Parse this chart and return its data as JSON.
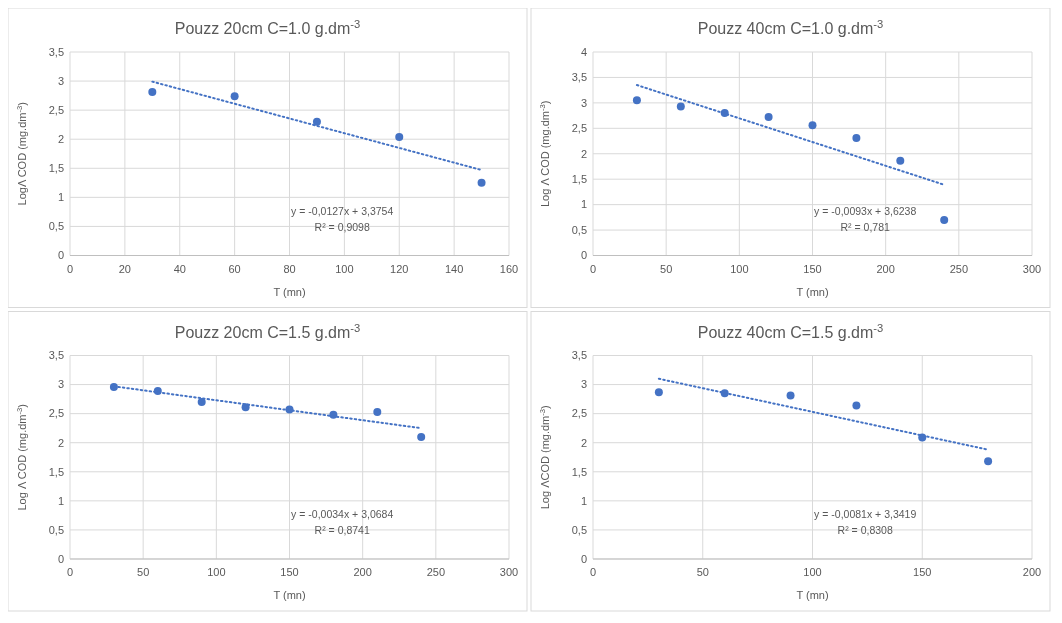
{
  "chart_data": [
    {
      "type": "scatter",
      "title": "Pouzz 20cm C=1.0 g.dm$^{-3}$",
      "xlabel": "T (mn)",
      "ylabel": "LogΛ  COD (mg.dm$^{-3}$)",
      "xlim": [
        0,
        160
      ],
      "xticks": [
        0,
        20,
        40,
        60,
        80,
        100,
        120,
        140,
        160
      ],
      "ylim": [
        0,
        3.5
      ],
      "yticks": [
        0,
        {
          "value": 0.5,
          "label": "0,5"
        },
        1,
        {
          "value": 1.5,
          "label": "1,5"
        },
        2,
        {
          "value": 2.5,
          "label": "2,5"
        },
        3,
        {
          "value": 3.5,
          "label": "3,5"
        }
      ],
      "grid": true,
      "annotations": [
        "y = -0,0127x + 3,3754",
        "R² = 0,9098"
      ],
      "series": [
        {
          "marker": "circle",
          "color": "#4472c4",
          "x": [
            30,
            60,
            90,
            120,
            150
          ],
          "values": [
            2.81,
            2.74,
            2.3,
            2.04,
            1.25
          ]
        },
        {
          "type": "line",
          "marker": "none",
          "line_style": "dotted",
          "color": "#4472c4",
          "x": [
            30,
            150
          ],
          "values": [
            2.99,
            1.47
          ]
        }
      ]
    },
    {
      "type": "scatter",
      "title": "Pouzz 40cm C=1.0 g.dm$^{-3}$",
      "xlabel": "T (mn)",
      "ylabel": "Log Λ COD (mg.dm$^{-3}$)",
      "xlim": [
        0,
        300
      ],
      "xticks": [
        0,
        50,
        100,
        150,
        200,
        250,
        300
      ],
      "ylim": [
        0,
        4
      ],
      "yticks": [
        0,
        {
          "value": 0.5,
          "label": "0,5"
        },
        1,
        {
          "value": 1.5,
          "label": "1,5"
        },
        2,
        {
          "value": 2.5,
          "label": "2,5"
        },
        3,
        {
          "value": 3.5,
          "label": "3,5"
        },
        4
      ],
      "grid": true,
      "annotations": [
        "y = -0,0093x + 3,6238",
        "R² = 0,781"
      ],
      "series": [
        {
          "marker": "circle",
          "color": "#4472c4",
          "x": [
            30,
            60,
            90,
            120,
            150,
            180,
            210,
            240
          ],
          "values": [
            3.05,
            2.93,
            2.8,
            2.72,
            2.56,
            2.31,
            1.86,
            0.7
          ]
        },
        {
          "type": "line",
          "marker": "none",
          "line_style": "dotted",
          "color": "#4472c4",
          "x": [
            30,
            240
          ],
          "values": [
            3.35,
            1.39
          ]
        }
      ]
    },
    {
      "type": "scatter",
      "title": "Pouzz 20cm C=1.5 g.dm$^{-3}$",
      "xlabel": "T (mn)",
      "ylabel": "Log Λ COD (mg.dm$^{-3}$)",
      "xlim": [
        0,
        300
      ],
      "xticks": [
        0,
        50,
        100,
        150,
        200,
        250,
        300
      ],
      "ylim": [
        0,
        3.5
      ],
      "yticks": [
        0,
        {
          "value": 0.5,
          "label": "0,5"
        },
        1,
        {
          "value": 1.5,
          "label": "1,5"
        },
        2,
        {
          "value": 2.5,
          "label": "2,5"
        },
        3,
        {
          "value": 3.5,
          "label": "3,5"
        }
      ],
      "grid": true,
      "annotations": [
        "y = -0,0034x + 3,0684",
        "R² = 0,8741"
      ],
      "series": [
        {
          "marker": "circle",
          "color": "#4472c4",
          "x": [
            30,
            60,
            90,
            120,
            150,
            180,
            210,
            240
          ],
          "values": [
            2.96,
            2.89,
            2.7,
            2.61,
            2.57,
            2.48,
            2.53,
            2.1
          ]
        },
        {
          "type": "line",
          "marker": "none",
          "line_style": "dotted",
          "color": "#4472c4",
          "x": [
            30,
            240
          ],
          "values": [
            2.97,
            2.25
          ]
        }
      ]
    },
    {
      "type": "scatter",
      "title": "Pouzz 40cm C=1.5 g.dm$^{-3}$",
      "xlabel": "T (mn)",
      "ylabel": "Log ΛCOD (mg.dm$^{-3}$)",
      "xlim": [
        0,
        200
      ],
      "xticks": [
        0,
        50,
        100,
        150,
        200
      ],
      "ylim": [
        0,
        3.5
      ],
      "yticks": [
        0,
        {
          "value": 0.5,
          "label": "0,5"
        },
        1,
        {
          "value": 1.5,
          "label": "1,5"
        },
        2,
        {
          "value": 2.5,
          "label": "2,5"
        },
        3,
        {
          "value": 3.5,
          "label": "3,5"
        }
      ],
      "grid": true,
      "annotations": [
        "y = -0,0081x + 3,3419",
        "R² = 0,8308"
      ],
      "series": [
        {
          "marker": "circle",
          "color": "#4472c4",
          "x": [
            30,
            60,
            90,
            120,
            150,
            180
          ],
          "values": [
            2.87,
            2.85,
            2.81,
            2.64,
            2.09,
            1.68
          ]
        },
        {
          "type": "line",
          "marker": "none",
          "line_style": "dotted",
          "color": "#4472c4",
          "x": [
            30,
            180
          ],
          "values": [
            3.1,
            1.88
          ]
        }
      ]
    }
  ]
}
